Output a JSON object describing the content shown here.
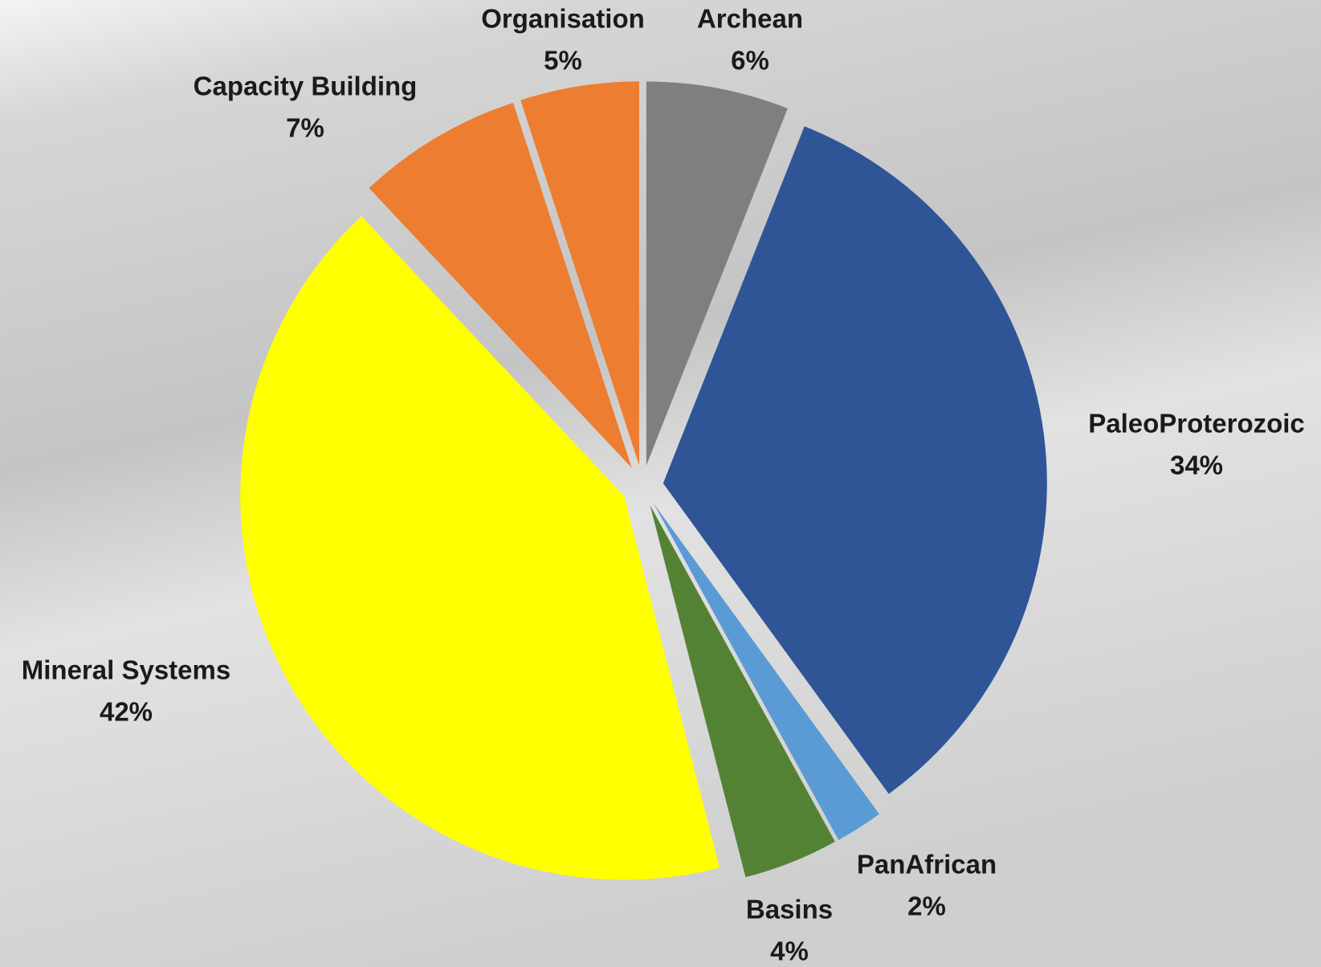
{
  "chart_data": {
    "type": "pie",
    "categories": [
      "Archean",
      "PaleoProterozoic",
      "PanAfrican",
      "Basins",
      "Mineral Systems",
      "Capacity Building",
      "Organisation"
    ],
    "values": [
      6,
      34,
      2,
      4,
      42,
      7,
      5
    ],
    "value_labels": [
      "6%",
      "34%",
      "2%",
      "4%",
      "42%",
      "7%",
      "5%"
    ],
    "colors": [
      "#7f7f7f",
      "#2f5597",
      "#5b9bd5",
      "#548235",
      "#ffff00",
      "#ed7d31",
      "#ed7d31"
    ]
  }
}
